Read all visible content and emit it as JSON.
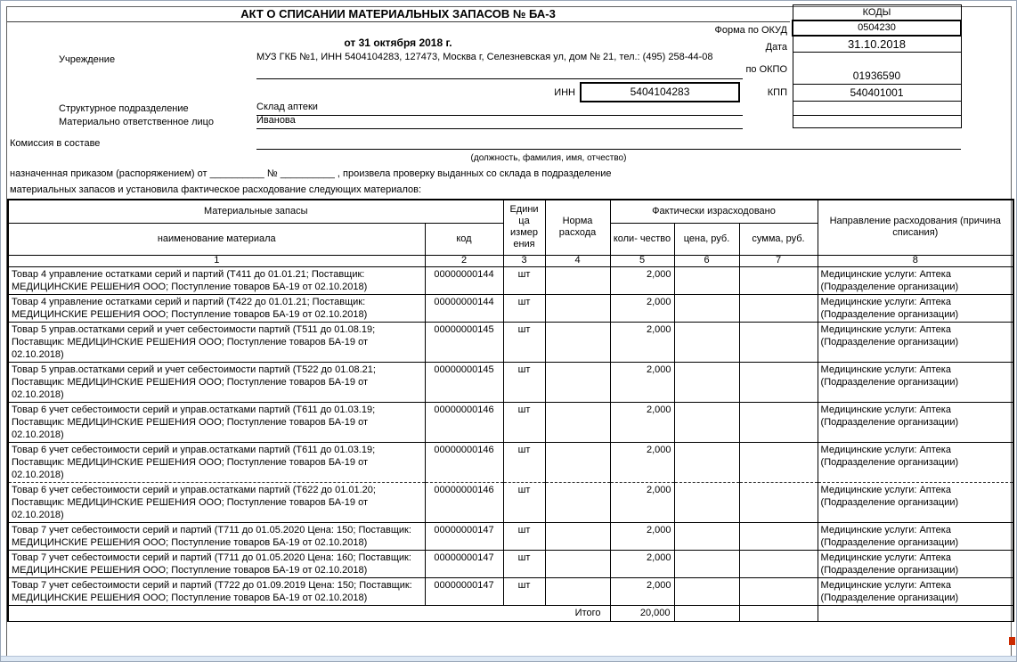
{
  "form": {
    "title": "АКТ О СПИСАНИИ МАТЕРИАЛЬНЫХ ЗАПАСОВ  № БА-3",
    "date_line": "от 31 октября 2018 г."
  },
  "codes_panel": {
    "header": "КОДЫ",
    "okud_label": "Форма  по ОКУД",
    "okud_value": "0504230",
    "date_label": "Дата",
    "date_value": "31.10.2018",
    "okpo_label": "по ОКПО",
    "okpo_value": "01936590",
    "kpp_label": "КПП",
    "kpp_value": "540401001"
  },
  "details": {
    "institution_label": "Учреждение",
    "institution_value": "МУЗ ГКБ №1, ИНН 5404104283, 127473, Москва г, Селезневская ул, дом № 21, тел.: (495) 258-44-08",
    "inn_label": "ИНН",
    "inn_value": "5404104283",
    "department_label": "Структурное подразделение",
    "department_value": "Склад аптеки",
    "responsible_label": "Материально ответственное лицо",
    "responsible_value": "Иванова"
  },
  "commission": {
    "label": "Комиссия в составе",
    "underline_hint": "(должность, фамилия, имя, отчество)",
    "appointed_line1": "назначенная приказом (распоряжением)  от  __________  №  __________ , произвела проверку выданных со склада в подразделение",
    "appointed_line2": "материальных запасов и установила фактическое расходование следующих материалов:"
  },
  "table": {
    "header": {
      "materials_group": "Материальные запасы",
      "name": "наименование материала",
      "code": "код",
      "unit": "Едини ца измер ения",
      "norm": "Норма расхода",
      "fact_group": "Фактически израсходовано",
      "qty": "коли- чество",
      "price": "цена, руб.",
      "sum": "сумма, руб.",
      "direction": "Направление расходования (причина списания)"
    },
    "column_numbers": [
      "1",
      "2",
      "3",
      "4",
      "5",
      "6",
      "7",
      "8"
    ],
    "rows": [
      {
        "name": "Товар 4 управление остатками серий и партий (Т411 до 01.01.21; Поставщик: МЕДИЦИНСКИЕ РЕШЕНИЯ ООО; Поступление товаров БА-19 от 02.10.2018)",
        "code": "00000000144",
        "unit": "шт",
        "norm": "",
        "qty": "2,000",
        "price": "",
        "sum": "",
        "direction": "Медицинские услуги: Аптека (Подразделение организации)"
      },
      {
        "name": "Товар 4 управление остатками серий и партий (Т422 до 01.01.21; Поставщик: МЕДИЦИНСКИЕ РЕШЕНИЯ ООО; Поступление товаров БА-19 от 02.10.2018)",
        "code": "00000000144",
        "unit": "шт",
        "norm": "",
        "qty": "2,000",
        "price": "",
        "sum": "",
        "direction": "Медицинские услуги: Аптека (Подразделение организации)"
      },
      {
        "name": "Товар 5 управ.остатками серий и учет себестоимости партий (Т511 до 01.08.19; Поставщик: МЕДИЦИНСКИЕ РЕШЕНИЯ ООО; Поступление товаров БА-19 от 02.10.2018)",
        "code": "00000000145",
        "unit": "шт",
        "norm": "",
        "qty": "2,000",
        "price": "",
        "sum": "",
        "direction": "Медицинские услуги: Аптека (Подразделение организации)"
      },
      {
        "name": "Товар 5 управ.остатками серий и учет себестоимости партий (Т522 до 01.08.21; Поставщик: МЕДИЦИНСКИЕ РЕШЕНИЯ ООО; Поступление товаров БА-19 от 02.10.2018)",
        "code": "00000000145",
        "unit": "шт",
        "norm": "",
        "qty": "2,000",
        "price": "",
        "sum": "",
        "direction": "Медицинские услуги: Аптека (Подразделение организации)"
      },
      {
        "name": "Товар 6 учет себестоимости серий и управ.остатками партий (Т611 до 01.03.19; Поставщик: МЕДИЦИНСКИЕ РЕШЕНИЯ ООО; Поступление товаров БА-19 от 02.10.2018)",
        "code": "00000000146",
        "unit": "шт",
        "norm": "",
        "qty": "2,000",
        "price": "",
        "sum": "",
        "direction": "Медицинские услуги: Аптека (Подразделение организации)"
      },
      {
        "name": "Товар 6 учет себестоимости серий и управ.остатками партий (Т611 до 01.03.19; Поставщик: МЕДИЦИНСКИЕ РЕШЕНИЯ ООО; Поступление товаров БА-19 от 02.10.2018)",
        "code": "00000000146",
        "unit": "шт",
        "norm": "",
        "qty": "2,000",
        "price": "",
        "sum": "",
        "direction": "Медицинские услуги: Аптека (Подразделение организации)"
      },
      {
        "name": "Товар 6 учет себестоимости серий и управ.остатками партий (Т622 до 01.01.20; Поставщик: МЕДИЦИНСКИЕ РЕШЕНИЯ ООО; Поступление товаров БА-19 от 02.10.2018)",
        "code": "00000000146",
        "unit": "шт",
        "norm": "",
        "qty": "2,000",
        "price": "",
        "sum": "",
        "direction": "Медицинские услуги: Аптека (Подразделение организации)",
        "page_break_before": true
      },
      {
        "name": "Товар 7 учет себестоимости серий и партий (Т711 до 01.05.2020 Цена: 150; Поставщик: МЕДИЦИНСКИЕ РЕШЕНИЯ ООО; Поступление товаров БА-19 от 02.10.2018)",
        "code": "00000000147",
        "unit": "шт",
        "norm": "",
        "qty": "2,000",
        "price": "",
        "sum": "",
        "direction": "Медицинские услуги: Аптека (Подразделение организации)"
      },
      {
        "name": "Товар 7 учет себестоимости серий и партий (Т711 до 01.05.2020 Цена: 160; Поставщик: МЕДИЦИНСКИЕ РЕШЕНИЯ ООО; Поступление товаров БА-19 от 02.10.2018)",
        "code": "00000000147",
        "unit": "шт",
        "norm": "",
        "qty": "2,000",
        "price": "",
        "sum": "",
        "direction": "Медицинские услуги: Аптека (Подразделение организации)"
      },
      {
        "name": "Товар 7 учет себестоимости серий и партий (Т722 до 01.09.2019 Цена: 150; Поставщик: МЕДИЦИНСКИЕ РЕШЕНИЯ ООО; Поступление товаров БА-19 от 02.10.2018)",
        "code": "00000000147",
        "unit": "шт",
        "norm": "",
        "qty": "2,000",
        "price": "",
        "sum": "",
        "direction": "Медицинские услуги: Аптека (Подразделение организации)"
      }
    ],
    "total": {
      "label": "Итого",
      "qty": "20,000"
    }
  }
}
